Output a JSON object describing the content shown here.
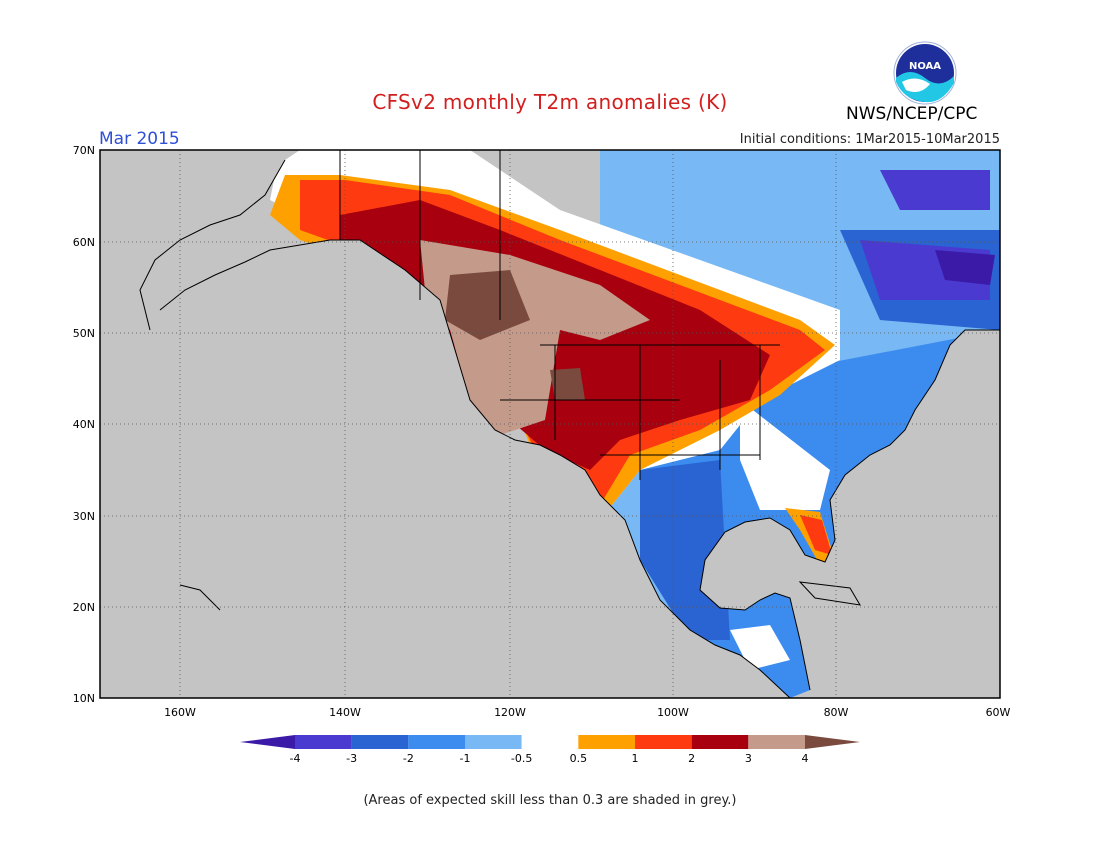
{
  "title": "CFSv2 monthly T2m anomalies (K)",
  "organization": "NWS/NCEP/CPC",
  "period": "Mar 2015",
  "initial_conditions": "Initial conditions: 1Mar2015-10Mar2015",
  "footnote": "(Areas of expected skill less than 0.3 are shaded in grey.)",
  "lat_labels": [
    "70N",
    "60N",
    "50N",
    "40N",
    "30N",
    "20N",
    "10N"
  ],
  "lon_labels": [
    "160W",
    "140W",
    "120W",
    "100W",
    "80W",
    "60W"
  ],
  "colorbar": {
    "labels": [
      "-4",
      "-3",
      "-2",
      "-1",
      "-0.5",
      "0.5",
      "1",
      "2",
      "3",
      "4"
    ],
    "colors": [
      "#3c1aa8",
      "#4a3ad0",
      "#2a64d2",
      "#3c8cf0",
      "#78b8f4",
      "#ffffff",
      "#fea000",
      "#fe3a10",
      "#a8000e",
      "#c49a8a",
      "#7a4a3e"
    ]
  },
  "skill_mask_color": "#c4c4c4"
}
